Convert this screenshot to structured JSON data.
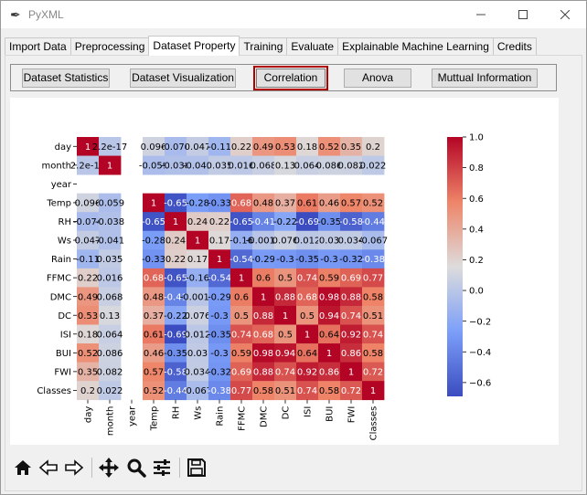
{
  "window": {
    "title": "PyXML",
    "app_icon": "feather-icon"
  },
  "tabs": [
    {
      "label": "Import Data"
    },
    {
      "label": "Preprocessing"
    },
    {
      "label": "Dataset Property",
      "active": true
    },
    {
      "label": "Training"
    },
    {
      "label": "Evaluate"
    },
    {
      "label": "Explainable Machine Learning"
    },
    {
      "label": "Credits"
    }
  ],
  "buttons": [
    {
      "label": "Dataset Statistics"
    },
    {
      "label": "Dataset Visualization"
    },
    {
      "label": "Correlation",
      "selected": true
    },
    {
      "label": "Anova"
    },
    {
      "label": "Muttual Information"
    }
  ],
  "toolbar": {
    "icons": [
      "home-icon",
      "back-arrow-icon",
      "forward-arrow-icon",
      "pan-icon",
      "zoom-icon",
      "configure-subplots-icon",
      "save-icon"
    ]
  },
  "chart_data": {
    "type": "heatmap",
    "variables": [
      "day",
      "month",
      "year",
      "Temp",
      "RH",
      "Ws",
      "Rain",
      "FFMC",
      "DMC",
      "DC",
      "ISI",
      "BUI",
      "FWI",
      "Classes"
    ],
    "cells": [
      [
        "1",
        "2.2e-17",
        "",
        "0.096",
        "-0.074",
        "0.047",
        "-0.11",
        "0.22",
        "0.49",
        "0.53",
        "0.18",
        "0.52",
        "0.35",
        "0.2"
      ],
      [
        "2.2e-17",
        "1",
        "",
        "-0.059",
        "-0.038",
        "-0.041",
        "0.035",
        "0.016",
        "0.068",
        "0.13",
        "0.064",
        "0.086",
        "0.082",
        "0.022"
      ],
      [
        "",
        "",
        "",
        "",
        "",
        "",
        "",
        "",
        "",
        "",
        "",
        "",
        "",
        ""
      ],
      [
        "0.096",
        "-0.059",
        "",
        "1",
        "-0.65",
        "-0.28",
        "-0.33",
        "0.68",
        "0.48",
        "0.37",
        "0.61",
        "0.46",
        "0.57",
        "0.52"
      ],
      [
        "-0.074",
        "-0.038",
        "",
        "-0.65",
        "1",
        "0.24",
        "0.22",
        "-0.65",
        "-0.41",
        "-0.22",
        "-0.69",
        "-0.35",
        "-0.58",
        "-0.44"
      ],
      [
        "0.047",
        "-0.041",
        "",
        "-0.28",
        "0.24",
        "1",
        "0.17",
        "-0.16",
        "-0.0012",
        "0.076",
        "0.012",
        "0.03",
        "0.034",
        "-0.067"
      ],
      [
        "-0.11",
        "0.035",
        "",
        "-0.33",
        "0.22",
        "0.17",
        "1",
        "-0.54",
        "-0.29",
        "-0.3",
        "-0.35",
        "-0.3",
        "-0.32",
        "-0.38"
      ],
      [
        "0.22",
        "0.016",
        "",
        "0.68",
        "-0.65",
        "-0.16",
        "-0.54",
        "1",
        "0.6",
        "0.5",
        "0.74",
        "0.59",
        "0.69",
        "0.77"
      ],
      [
        "0.49",
        "0.068",
        "",
        "0.48",
        "-0.41",
        "-0.0012",
        "-0.29",
        "0.6",
        "1",
        "0.88",
        "0.68",
        "0.98",
        "0.88",
        "0.58"
      ],
      [
        "0.53",
        "0.13",
        "",
        "0.37",
        "-0.22",
        "0.076",
        "-0.3",
        "0.5",
        "0.88",
        "1",
        "0.5",
        "0.94",
        "0.74",
        "0.51"
      ],
      [
        "0.18",
        "0.064",
        "",
        "0.61",
        "-0.69",
        "0.012",
        "-0.35",
        "0.74",
        "0.68",
        "0.5",
        "1",
        "0.64",
        "0.92",
        "0.74"
      ],
      [
        "0.52",
        "0.086",
        "",
        "0.46",
        "-0.35",
        "0.03",
        "-0.3",
        "0.59",
        "0.98",
        "0.94",
        "0.64",
        "1",
        "0.86",
        "0.58"
      ],
      [
        "0.35",
        "0.082",
        "",
        "0.57",
        "-0.58",
        "0.034",
        "-0.32",
        "0.69",
        "0.88",
        "0.74",
        "0.92",
        "0.86",
        "1",
        "0.72"
      ],
      [
        "0.2",
        "0.022",
        "",
        "0.52",
        "-0.44",
        "-0.067",
        "-0.38",
        "0.77",
        "0.58",
        "0.51",
        "0.74",
        "0.58",
        "0.72",
        "1"
      ]
    ],
    "colorbar": {
      "min": -0.69,
      "max": 1.0,
      "ticks": [
        "1.0",
        "0.8",
        "0.6",
        "0.4",
        "0.2",
        "0.0",
        "−0.2",
        "−0.4",
        "−0.6"
      ],
      "tick_values": [
        1.0,
        0.8,
        0.6,
        0.4,
        0.2,
        0.0,
        -0.2,
        -0.4,
        -0.6
      ]
    },
    "colormap": "coolwarm",
    "colors": {
      "low": "#3b4cc0",
      "mid": "#dddcdc",
      "high": "#b40426"
    }
  }
}
